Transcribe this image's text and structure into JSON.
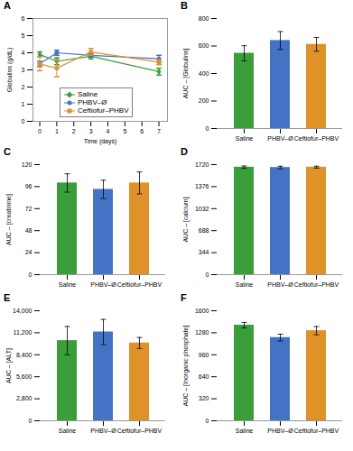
{
  "chart_data": [
    {
      "type": "line",
      "title": "A",
      "x": [
        0,
        1,
        3,
        7
      ],
      "series": [
        {
          "name": "Saline",
          "color": "#3a9e3a",
          "marker": "diamond",
          "values": [
            3.9,
            3.5,
            3.8,
            2.9
          ],
          "error": [
            0.15,
            0.2,
            0.15,
            0.2
          ]
        },
        {
          "name": "PHBV–Ø",
          "color": "#4472c4",
          "marker": "circle",
          "values": [
            3.35,
            4.0,
            3.85,
            3.65
          ],
          "error": [
            0.15,
            0.15,
            0.1,
            0.2
          ]
        },
        {
          "name": "Ceftiofur–PHBV",
          "color": "#e0922a",
          "marker": "square",
          "values": [
            3.35,
            3.1,
            4.05,
            3.45
          ],
          "error": [
            0.4,
            0.5,
            0.2,
            0.15
          ]
        }
      ],
      "xlabel": "Time (days)",
      "ylabel": "Globulins (g/dL)",
      "xlim": [
        -0.4,
        7.5
      ],
      "xticks": [
        0,
        1,
        2,
        3,
        4,
        5,
        6,
        7
      ],
      "ylim": [
        0,
        6
      ],
      "yticks": [
        0,
        1,
        2,
        3,
        4,
        5,
        6
      ],
      "legend": "lower left"
    },
    {
      "type": "bar",
      "title": "B",
      "categories": [
        "Saline",
        "PHBV–Ø",
        "Ceftiofur–PHBV"
      ],
      "values": [
        547,
        640,
        612
      ],
      "error": [
        55,
        65,
        50
      ],
      "colors": [
        "#3a9e3a",
        "#4472c4",
        "#e0922a"
      ],
      "ylabel": "AUC – [Globulins]",
      "ylim": [
        0,
        800
      ],
      "yticks": [
        0,
        200,
        400,
        600,
        800
      ]
    },
    {
      "type": "bar",
      "title": "C",
      "categories": [
        "Saline",
        "PHBV–Ø",
        "Ceftiofur–PHBV"
      ],
      "values": [
        100,
        93,
        100
      ],
      "error": [
        10,
        10,
        12
      ],
      "colors": [
        "#3a9e3a",
        "#4472c4",
        "#e0922a"
      ],
      "ylabel": "AUC – [creatinine]",
      "ylim": [
        0,
        120
      ],
      "yticks": [
        0,
        24,
        48,
        72,
        96,
        120
      ]
    },
    {
      "type": "bar",
      "title": "D",
      "categories": [
        "Saline",
        "PHBV–Ø",
        "Ceftiofur–PHBV"
      ],
      "values": [
        1680,
        1675,
        1680
      ],
      "error": [
        18,
        20,
        15
      ],
      "colors": [
        "#3a9e3a",
        "#4472c4",
        "#e0922a"
      ],
      "ylabel": "AUC – [calcium]",
      "ylim": [
        0,
        1720
      ],
      "yticks": [
        0,
        344,
        688,
        1032,
        1376,
        1720
      ]
    },
    {
      "type": "bar",
      "title": "E",
      "categories": [
        "Saline",
        "PHBV–Ø",
        "Ceftiofur–PHBV"
      ],
      "values": [
        10200,
        11300,
        9900
      ],
      "error": [
        1800,
        1600,
        700
      ],
      "colors": [
        "#3a9e3a",
        "#4472c4",
        "#e0922a"
      ],
      "ylabel": "AUC – [ALT]",
      "ylim": [
        0,
        14000
      ],
      "yticks": [
        0,
        {
          "value": 2800,
          "label": "2,800"
        },
        {
          "value": 5600,
          "label": "5,600"
        },
        {
          "value": 8400,
          "label": "8,400"
        },
        {
          "value": 11200,
          "label": "11,200"
        },
        {
          "value": 14000,
          "label": "14,000"
        }
      ]
    },
    {
      "type": "bar",
      "title": "F",
      "categories": [
        "Saline",
        "PHBV–Ø",
        "Ceftiofur–PHBV"
      ],
      "values": [
        1390,
        1210,
        1310
      ],
      "error": [
        40,
        50,
        60
      ],
      "colors": [
        "#3a9e3a",
        "#4472c4",
        "#e0922a"
      ],
      "ylabel": "AUC – [Inorganic phosphate]",
      "ylim": [
        0,
        1600
      ],
      "yticks": [
        0,
        320,
        640,
        960,
        1280,
        1600
      ]
    }
  ]
}
